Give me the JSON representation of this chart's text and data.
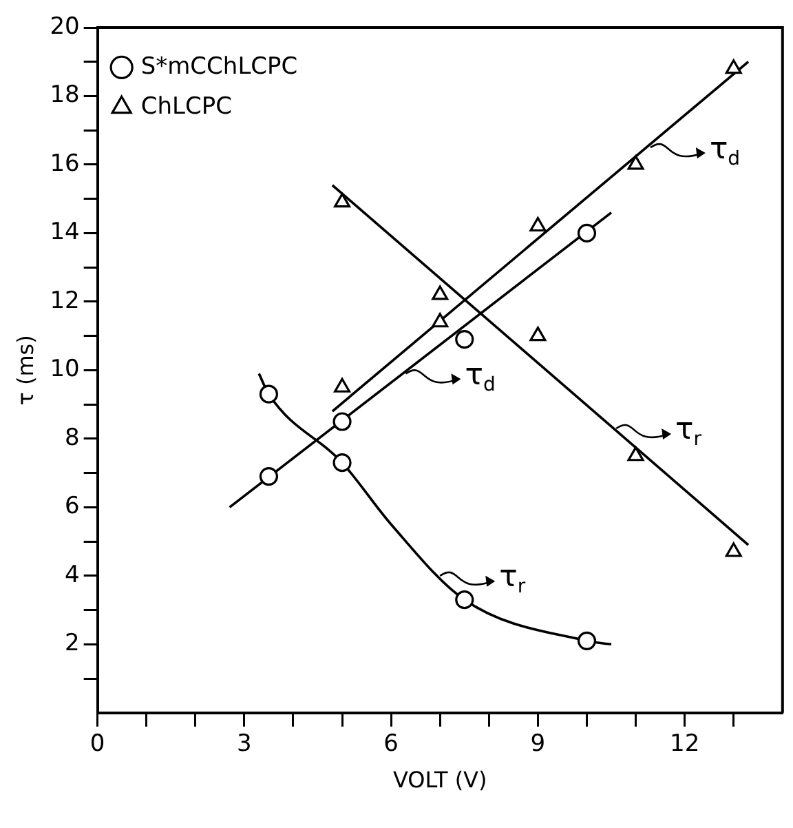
{
  "chart_data": {
    "type": "scatter",
    "xlabel": "VOLT (V)",
    "ylabel": "τ (ms)",
    "xlim": [
      0,
      14
    ],
    "ylim": [
      0,
      20
    ],
    "xticks": [
      0,
      {
        "value": 1,
        "label": null
      },
      {
        "value": 2,
        "label": null
      },
      3,
      {
        "value": 4,
        "label": null
      },
      {
        "value": 5,
        "label": null
      },
      6,
      {
        "value": 7,
        "label": null
      },
      {
        "value": 8,
        "label": null
      },
      9,
      {
        "value": 10,
        "label": null
      },
      {
        "value": 11,
        "label": null
      },
      12,
      {
        "value": 13,
        "label": null
      }
    ],
    "yticks": [
      {
        "value": 1,
        "label": null
      },
      2,
      {
        "value": 3,
        "label": null
      },
      4,
      {
        "value": 5,
        "label": null
      },
      6,
      {
        "value": 7,
        "label": null
      },
      8,
      {
        "value": 9,
        "label": null
      },
      10,
      {
        "value": 11,
        "label": null
      },
      12,
      {
        "value": 13,
        "label": null
      },
      14,
      {
        "value": 15,
        "label": null
      },
      16,
      {
        "value": 17,
        "label": null
      },
      18,
      {
        "value": 19,
        "label": null
      },
      20
    ],
    "grid": false,
    "legend": "top left",
    "series": [
      {
        "name": "S*mCChLCPC",
        "color": "#000000",
        "marker": "circle",
        "x": [
          3.5,
          5,
          7.5,
          10,
          3.5,
          5,
          7.5,
          10
        ],
        "values": [
          6.9,
          8.5,
          10.9,
          14.0,
          9.3,
          7.3,
          3.3,
          2.1
        ]
      },
      {
        "name": "ChLCPC",
        "color": "#000000",
        "marker": "triangle",
        "x": [
          5,
          7,
          9,
          11,
          13,
          5,
          7,
          9,
          11,
          13
        ],
        "values": [
          9.5,
          11.4,
          14.2,
          16.0,
          18.8,
          14.9,
          12.2,
          11.0,
          7.5,
          4.7
        ]
      },
      {
        "type": "line",
        "color": "#000000",
        "marker": "none",
        "x": [
          2.7,
          10.5
        ],
        "values": [
          6.0,
          14.6
        ]
      },
      {
        "type": "line",
        "color": "#000000",
        "marker": "none",
        "x": [
          3.3,
          3.5,
          5,
          6,
          7.5,
          10,
          10.5
        ],
        "values": [
          9.9,
          9.3,
          7.3,
          5.5,
          3.3,
          2.1,
          2.0
        ]
      },
      {
        "type": "line",
        "color": "#000000",
        "marker": "none",
        "x": [
          4.8,
          13.3
        ],
        "values": [
          8.8,
          19.0
        ]
      },
      {
        "type": "line",
        "color": "#000000",
        "marker": "none",
        "x": [
          4.8,
          13.3
        ],
        "values": [
          15.4,
          4.9
        ]
      }
    ],
    "annotations": [
      {
        "text": "τ$_{d}$",
        "x": 11.3,
        "y": 16.5
      },
      {
        "text": "τ$_{d}$",
        "x": 6.3,
        "y": 9.9
      },
      {
        "text": "τ$_{r}$",
        "x": 10.6,
        "y": 8.3
      },
      {
        "text": "τ$_{r}$",
        "x": 7.0,
        "y": 4.0
      }
    ]
  }
}
